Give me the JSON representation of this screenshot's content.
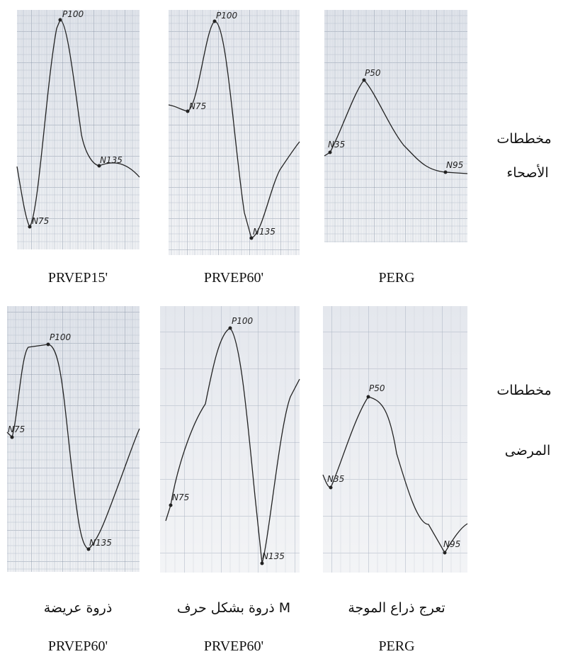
{
  "rows": [
    {
      "label": [
        "مخططات",
        "الأصحاء"
      ],
      "panels": [
        {
          "peaks": [
            "P100",
            "N75",
            "N135"
          ],
          "caption": "PRVEP15'"
        },
        {
          "peaks": [
            "P100",
            "N75",
            "N135"
          ],
          "caption": "PRVEP60'"
        },
        {
          "peaks": [
            "P50",
            "N35",
            "N95"
          ],
          "caption": "PERG"
        }
      ]
    },
    {
      "label": [
        "مخططات",
        "المرضى"
      ],
      "panels": [
        {
          "peaks": [
            "P100",
            "N75",
            "N135"
          ],
          "description": "ذروة عريضة",
          "caption": "PRVEP60'"
        },
        {
          "peaks": [
            "P100",
            "N75",
            "N135"
          ],
          "description": "ذروة بشكل حرف M",
          "caption": "PRVEP60'"
        },
        {
          "peaks": [
            "P50",
            "N35",
            "N95"
          ],
          "description": "تعرج ذراع الموجة",
          "caption": "PERG"
        }
      ]
    }
  ]
}
